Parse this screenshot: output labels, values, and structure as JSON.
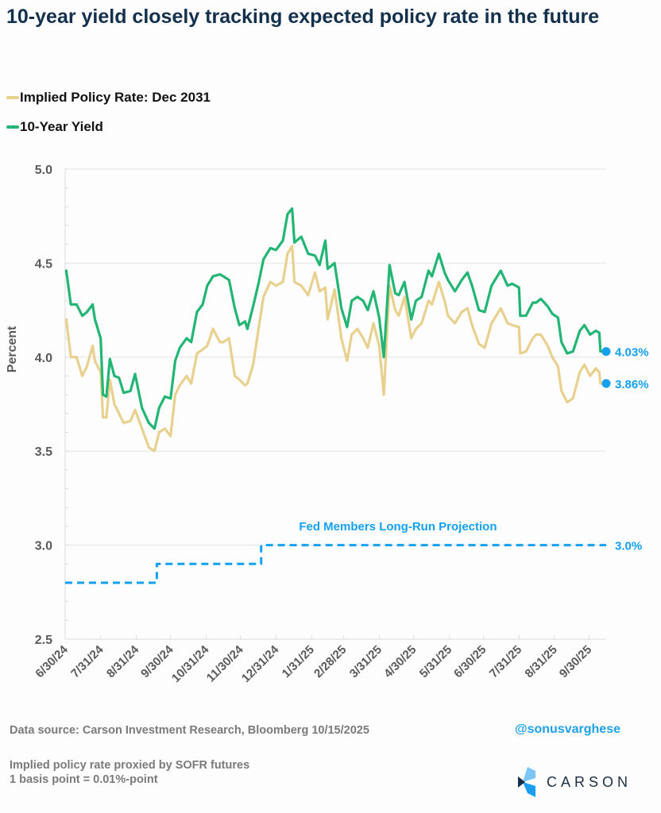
{
  "header": {
    "title": "10-year yield closely tracking expected policy rate in the future"
  },
  "legend": [
    {
      "label": "Implied Policy Rate: Dec 2031",
      "color": "#e8d08e"
    },
    {
      "label": "10-Year Yield",
      "color": "#22b573"
    }
  ],
  "footer": {
    "source": "Data source: Carson Investment Research, Bloomberg   10/15/2025",
    "handle": "@sonusvarghese",
    "note_line1": "Implied policy rate proxied by SOFR futures",
    "note_line2": "1 basis point = 0.01%-point",
    "logo_text": "CARSON"
  },
  "chart_data": {
    "type": "line",
    "title": "10-year yield closely tracking expected policy rate in the future",
    "xlabel": "",
    "ylabel": "Percent",
    "ylim": [
      2.5,
      5.0
    ],
    "yticks": [
      "2.5",
      "3.0",
      "3.5",
      "4.0",
      "4.5",
      "5.0"
    ],
    "ytick_values": [
      2.5,
      3.0,
      3.5,
      4.0,
      4.5,
      5.0
    ],
    "xlim": [
      "2024-06-30",
      "2025-10-15"
    ],
    "xticks": [
      "6/30/24",
      "7/31/24",
      "8/31/24",
      "9/30/24",
      "10/31/24",
      "11/30/24",
      "12/31/24",
      "1/31/25",
      "2/28/25",
      "3/31/25",
      "4/30/25",
      "5/31/25",
      "6/30/25",
      "7/31/25",
      "8/31/25",
      "9/30/25"
    ],
    "xtick_dates": [
      "2024-06-30",
      "2024-07-31",
      "2024-08-31",
      "2024-09-30",
      "2024-10-31",
      "2024-11-30",
      "2024-12-31",
      "2025-01-31",
      "2025-02-28",
      "2025-03-31",
      "2025-04-30",
      "2025-05-31",
      "2025-06-30",
      "2025-07-31",
      "2025-08-31",
      "2025-09-30"
    ],
    "grid": "horizontal",
    "legend_position": "top-left",
    "series": [
      {
        "name": "10-Year Yield",
        "color": "#22b573",
        "end_label": "4.03%",
        "points": [
          [
            "2024-07-01",
            4.46
          ],
          [
            "2024-07-05",
            4.28
          ],
          [
            "2024-07-10",
            4.28
          ],
          [
            "2024-07-15",
            4.22
          ],
          [
            "2024-07-19",
            4.24
          ],
          [
            "2024-07-24",
            4.28
          ],
          [
            "2024-07-26",
            4.2
          ],
          [
            "2024-07-31",
            4.1
          ],
          [
            "2024-08-02",
            3.8
          ],
          [
            "2024-08-05",
            3.79
          ],
          [
            "2024-08-08",
            3.99
          ],
          [
            "2024-08-12",
            3.9
          ],
          [
            "2024-08-16",
            3.89
          ],
          [
            "2024-08-20",
            3.81
          ],
          [
            "2024-08-26",
            3.82
          ],
          [
            "2024-08-30",
            3.91
          ],
          [
            "2024-09-05",
            3.73
          ],
          [
            "2024-09-11",
            3.65
          ],
          [
            "2024-09-16",
            3.62
          ],
          [
            "2024-09-20",
            3.73
          ],
          [
            "2024-09-25",
            3.79
          ],
          [
            "2024-09-30",
            3.78
          ],
          [
            "2024-10-04",
            3.98
          ],
          [
            "2024-10-08",
            4.05
          ],
          [
            "2024-10-14",
            4.1
          ],
          [
            "2024-10-18",
            4.08
          ],
          [
            "2024-10-23",
            4.24
          ],
          [
            "2024-10-28",
            4.28
          ],
          [
            "2024-11-01",
            4.38
          ],
          [
            "2024-11-06",
            4.43
          ],
          [
            "2024-11-12",
            4.44
          ],
          [
            "2024-11-15",
            4.43
          ],
          [
            "2024-11-20",
            4.41
          ],
          [
            "2024-11-25",
            4.26
          ],
          [
            "2024-11-29",
            4.17
          ],
          [
            "2024-12-04",
            4.19
          ],
          [
            "2024-12-06",
            4.15
          ],
          [
            "2024-12-11",
            4.27
          ],
          [
            "2024-12-16",
            4.4
          ],
          [
            "2024-12-20",
            4.52
          ],
          [
            "2024-12-26",
            4.58
          ],
          [
            "2024-12-31",
            4.57
          ],
          [
            "2025-01-06",
            4.62
          ],
          [
            "2025-01-10",
            4.76
          ],
          [
            "2025-01-14",
            4.79
          ],
          [
            "2025-01-16",
            4.61
          ],
          [
            "2025-01-22",
            4.64
          ],
          [
            "2025-01-28",
            4.55
          ],
          [
            "2025-02-03",
            4.54
          ],
          [
            "2025-02-07",
            4.49
          ],
          [
            "2025-02-12",
            4.62
          ],
          [
            "2025-02-14",
            4.47
          ],
          [
            "2025-02-20",
            4.5
          ],
          [
            "2025-02-26",
            4.26
          ],
          [
            "2025-03-03",
            4.16
          ],
          [
            "2025-03-07",
            4.3
          ],
          [
            "2025-03-12",
            4.32
          ],
          [
            "2025-03-17",
            4.3
          ],
          [
            "2025-03-21",
            4.25
          ],
          [
            "2025-03-26",
            4.35
          ],
          [
            "2025-03-31",
            4.21
          ],
          [
            "2025-04-04",
            4.0
          ],
          [
            "2025-04-09",
            4.49
          ],
          [
            "2025-04-14",
            4.34
          ],
          [
            "2025-04-17",
            4.33
          ],
          [
            "2025-04-22",
            4.4
          ],
          [
            "2025-04-28",
            4.2
          ],
          [
            "2025-05-02",
            4.3
          ],
          [
            "2025-05-07",
            4.32
          ],
          [
            "2025-05-13",
            4.46
          ],
          [
            "2025-05-16",
            4.43
          ],
          [
            "2025-05-22",
            4.55
          ],
          [
            "2025-05-27",
            4.45
          ],
          [
            "2025-05-30",
            4.41
          ],
          [
            "2025-06-05",
            4.35
          ],
          [
            "2025-06-11",
            4.41
          ],
          [
            "2025-06-16",
            4.45
          ],
          [
            "2025-06-20",
            4.38
          ],
          [
            "2025-06-26",
            4.25
          ],
          [
            "2025-07-01",
            4.24
          ],
          [
            "2025-07-07",
            4.38
          ],
          [
            "2025-07-11",
            4.42
          ],
          [
            "2025-07-15",
            4.46
          ],
          [
            "2025-07-21",
            4.38
          ],
          [
            "2025-07-25",
            4.39
          ],
          [
            "2025-07-31",
            4.37
          ],
          [
            "2025-08-01",
            4.22
          ],
          [
            "2025-08-06",
            4.22
          ],
          [
            "2025-08-12",
            4.29
          ],
          [
            "2025-08-15",
            4.29
          ],
          [
            "2025-08-19",
            4.31
          ],
          [
            "2025-08-25",
            4.27
          ],
          [
            "2025-08-29",
            4.23
          ],
          [
            "2025-09-03",
            4.21
          ],
          [
            "2025-09-06",
            4.08
          ],
          [
            "2025-09-11",
            4.02
          ],
          [
            "2025-09-16",
            4.03
          ],
          [
            "2025-09-22",
            4.14
          ],
          [
            "2025-09-26",
            4.17
          ],
          [
            "2025-10-01",
            4.12
          ],
          [
            "2025-10-06",
            4.14
          ],
          [
            "2025-10-09",
            4.13
          ],
          [
            "2025-10-10",
            4.03
          ],
          [
            "2025-10-15",
            4.03
          ]
        ]
      },
      {
        "name": "Implied Policy Rate: Dec 2031",
        "color": "#e8d08e",
        "end_label": "3.86%",
        "points": [
          [
            "2024-07-01",
            4.2
          ],
          [
            "2024-07-05",
            4.0
          ],
          [
            "2024-07-10",
            4.0
          ],
          [
            "2024-07-15",
            3.9
          ],
          [
            "2024-07-19",
            3.95
          ],
          [
            "2024-07-24",
            4.06
          ],
          [
            "2024-07-26",
            3.98
          ],
          [
            "2024-07-31",
            3.92
          ],
          [
            "2024-08-02",
            3.68
          ],
          [
            "2024-08-05",
            3.68
          ],
          [
            "2024-08-08",
            3.88
          ],
          [
            "2024-08-12",
            3.75
          ],
          [
            "2024-08-16",
            3.7
          ],
          [
            "2024-08-20",
            3.65
          ],
          [
            "2024-08-26",
            3.66
          ],
          [
            "2024-08-30",
            3.72
          ],
          [
            "2024-09-05",
            3.62
          ],
          [
            "2024-09-11",
            3.52
          ],
          [
            "2024-09-16",
            3.5
          ],
          [
            "2024-09-20",
            3.6
          ],
          [
            "2024-09-25",
            3.62
          ],
          [
            "2024-09-30",
            3.58
          ],
          [
            "2024-10-04",
            3.8
          ],
          [
            "2024-10-08",
            3.85
          ],
          [
            "2024-10-14",
            3.9
          ],
          [
            "2024-10-18",
            3.86
          ],
          [
            "2024-10-23",
            4.02
          ],
          [
            "2024-10-28",
            4.04
          ],
          [
            "2024-11-01",
            4.06
          ],
          [
            "2024-11-06",
            4.15
          ],
          [
            "2024-11-12",
            4.08
          ],
          [
            "2024-11-15",
            4.08
          ],
          [
            "2024-11-20",
            4.1
          ],
          [
            "2024-11-25",
            3.9
          ],
          [
            "2024-11-29",
            3.88
          ],
          [
            "2024-12-04",
            3.85
          ],
          [
            "2024-12-06",
            3.86
          ],
          [
            "2024-12-11",
            3.96
          ],
          [
            "2024-12-16",
            4.16
          ],
          [
            "2024-12-20",
            4.32
          ],
          [
            "2024-12-26",
            4.4
          ],
          [
            "2024-12-31",
            4.38
          ],
          [
            "2025-01-06",
            4.4
          ],
          [
            "2025-01-10",
            4.55
          ],
          [
            "2025-01-14",
            4.59
          ],
          [
            "2025-01-16",
            4.4
          ],
          [
            "2025-01-22",
            4.38
          ],
          [
            "2025-01-28",
            4.33
          ],
          [
            "2025-02-03",
            4.45
          ],
          [
            "2025-02-07",
            4.35
          ],
          [
            "2025-02-12",
            4.37
          ],
          [
            "2025-02-14",
            4.2
          ],
          [
            "2025-02-20",
            4.36
          ],
          [
            "2025-02-26",
            4.1
          ],
          [
            "2025-03-03",
            3.98
          ],
          [
            "2025-03-07",
            4.12
          ],
          [
            "2025-03-12",
            4.15
          ],
          [
            "2025-03-17",
            4.1
          ],
          [
            "2025-03-21",
            4.05
          ],
          [
            "2025-03-26",
            4.18
          ],
          [
            "2025-03-31",
            4.06
          ],
          [
            "2025-04-04",
            3.8
          ],
          [
            "2025-04-09",
            4.38
          ],
          [
            "2025-04-14",
            4.25
          ],
          [
            "2025-04-17",
            4.22
          ],
          [
            "2025-04-22",
            4.32
          ],
          [
            "2025-04-28",
            4.1
          ],
          [
            "2025-05-02",
            4.15
          ],
          [
            "2025-05-07",
            4.18
          ],
          [
            "2025-05-13",
            4.3
          ],
          [
            "2025-05-16",
            4.28
          ],
          [
            "2025-05-22",
            4.4
          ],
          [
            "2025-05-27",
            4.3
          ],
          [
            "2025-05-30",
            4.22
          ],
          [
            "2025-06-05",
            4.18
          ],
          [
            "2025-06-11",
            4.24
          ],
          [
            "2025-06-16",
            4.26
          ],
          [
            "2025-06-20",
            4.17
          ],
          [
            "2025-06-26",
            4.07
          ],
          [
            "2025-07-01",
            4.05
          ],
          [
            "2025-07-07",
            4.18
          ],
          [
            "2025-07-11",
            4.22
          ],
          [
            "2025-07-15",
            4.26
          ],
          [
            "2025-07-21",
            4.18
          ],
          [
            "2025-07-25",
            4.17
          ],
          [
            "2025-07-31",
            4.16
          ],
          [
            "2025-08-01",
            4.02
          ],
          [
            "2025-08-06",
            4.03
          ],
          [
            "2025-08-12",
            4.1
          ],
          [
            "2025-08-15",
            4.12
          ],
          [
            "2025-08-19",
            4.12
          ],
          [
            "2025-08-25",
            4.06
          ],
          [
            "2025-08-29",
            4.0
          ],
          [
            "2025-09-03",
            3.95
          ],
          [
            "2025-09-06",
            3.82
          ],
          [
            "2025-09-11",
            3.76
          ],
          [
            "2025-09-16",
            3.78
          ],
          [
            "2025-09-22",
            3.92
          ],
          [
            "2025-09-26",
            3.96
          ],
          [
            "2025-10-01",
            3.9
          ],
          [
            "2025-10-06",
            3.94
          ],
          [
            "2025-10-09",
            3.92
          ],
          [
            "2025-10-10",
            3.86
          ],
          [
            "2025-10-15",
            3.86
          ]
        ]
      },
      {
        "name": "Fed Members Long-Run Projection",
        "color": "#12a1f0",
        "style": "dashed-step",
        "end_label": "3.0%",
        "points": [
          [
            "2024-06-30",
            2.8
          ],
          [
            "2024-09-18",
            2.8
          ],
          [
            "2024-09-18",
            2.9
          ],
          [
            "2024-12-18",
            2.9
          ],
          [
            "2024-12-18",
            3.0
          ],
          [
            "2025-10-15",
            3.0
          ]
        ]
      }
    ],
    "annotations": [
      {
        "text": "Fed Members Long-Run Projection",
        "color": "#12a1f0",
        "x": "2025-01-20",
        "y": 3.1
      }
    ]
  }
}
